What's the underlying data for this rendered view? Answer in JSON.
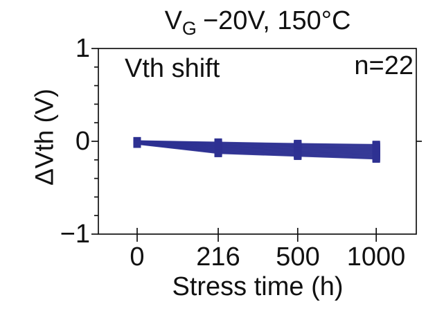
{
  "figure": {
    "background": "#ffffff",
    "title_full": "V_G −20V, 150°C",
    "title_parts": {
      "main": "V",
      "sub": "G",
      "rest": "−20V, 150°C"
    }
  },
  "chart_data": {
    "type": "line",
    "title": "V_G −20V, 150°C",
    "xlabel": "Stress time (h)",
    "ylabel": "ΔVth (V)",
    "categories": [
      "0",
      "216",
      "500",
      "1000"
    ],
    "yticklabels": [
      "1",
      "0",
      "−1"
    ],
    "ylim": [
      -1,
      1
    ],
    "ytick_major": [
      1,
      0,
      -1
    ],
    "ytick_minor_step": 0.2,
    "grid": false,
    "legend": "none",
    "annotations": [
      {
        "text": "Vth shift",
        "position": "top-left"
      },
      {
        "text": "n=22",
        "position": "top-right"
      }
    ],
    "n_series": 22,
    "marker": "square",
    "colors": {
      "line": "#2e3192",
      "frame": "#111111",
      "text": "#111111",
      "background": "#ffffff"
    },
    "series": [
      {
        "values": [
          0.005,
          -0.01,
          -0.025,
          -0.035
        ]
      },
      {
        "values": [
          0.003,
          -0.016,
          -0.031,
          -0.042
        ]
      },
      {
        "values": [
          0.002,
          -0.021,
          -0.038,
          -0.05
        ]
      },
      {
        "values": [
          0.0,
          -0.027,
          -0.044,
          -0.057
        ]
      },
      {
        "values": [
          -0.002,
          -0.033,
          -0.051,
          -0.065
        ]
      },
      {
        "values": [
          -0.003,
          -0.039,
          -0.057,
          -0.072
        ]
      },
      {
        "values": [
          -0.005,
          -0.044,
          -0.064,
          -0.079
        ]
      },
      {
        "values": [
          -0.007,
          -0.05,
          -0.07,
          -0.087
        ]
      },
      {
        "values": [
          -0.008,
          -0.056,
          -0.076,
          -0.094
        ]
      },
      {
        "values": [
          -0.01,
          -0.061,
          -0.083,
          -0.101
        ]
      },
      {
        "values": [
          -0.012,
          -0.067,
          -0.089,
          -0.109
        ]
      },
      {
        "values": [
          -0.013,
          -0.073,
          -0.096,
          -0.116
        ]
      },
      {
        "values": [
          -0.015,
          -0.079,
          -0.102,
          -0.124
        ]
      },
      {
        "values": [
          -0.017,
          -0.084,
          -0.109,
          -0.131
        ]
      },
      {
        "values": [
          -0.018,
          -0.09,
          -0.115,
          -0.138
        ]
      },
      {
        "values": [
          -0.02,
          -0.096,
          -0.121,
          -0.146
        ]
      },
      {
        "values": [
          -0.022,
          -0.101,
          -0.128,
          -0.153
        ]
      },
      {
        "values": [
          -0.023,
          -0.107,
          -0.134,
          -0.16
        ]
      },
      {
        "values": [
          -0.025,
          -0.113,
          -0.141,
          -0.168
        ]
      },
      {
        "values": [
          -0.027,
          -0.119,
          -0.147,
          -0.175
        ]
      },
      {
        "values": [
          -0.028,
          -0.124,
          -0.154,
          -0.183
        ]
      },
      {
        "values": [
          -0.03,
          -0.13,
          -0.16,
          -0.19
        ]
      }
    ]
  }
}
